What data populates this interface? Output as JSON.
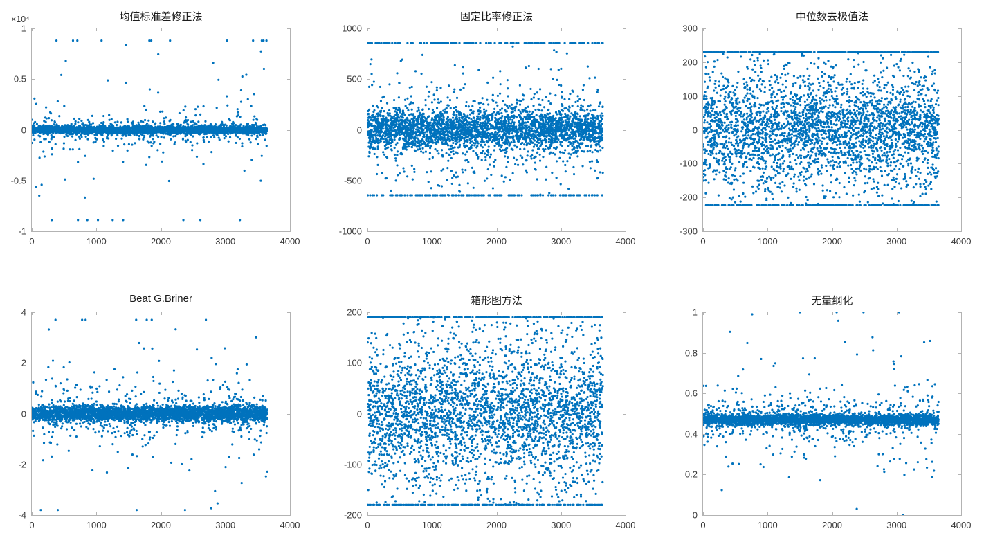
{
  "figure": {
    "background": "#ffffff",
    "axes_border_color": "#b3b3b3",
    "tick_label_color": "#3b3b3b",
    "marker_color": "#0072BD"
  },
  "chart_data": [
    {
      "type": "scatter",
      "title": "均值标准差修正法",
      "y_exponent_label": "×10⁴",
      "xlim": [
        0,
        4000
      ],
      "ylim": [
        -10000,
        10000
      ],
      "xticks": [
        0,
        1000,
        2000,
        3000,
        4000
      ],
      "yticks": [
        -10000,
        -5000,
        0,
        5000,
        10000
      ],
      "ytick_labels": [
        "-1",
        "-0.5",
        "0",
        "0.5",
        "1"
      ],
      "n_points": 3650,
      "x_max_data": 3650,
      "center": 0,
      "band_components": [
        {
          "frac": 0.86,
          "std": 180
        },
        {
          "frac": 0.1,
          "std": 700
        },
        {
          "frac": 0.03,
          "std": 1800
        },
        {
          "frac": 0.01,
          "std": 4200
        }
      ],
      "clip_high": {
        "value": 8800,
        "frac": 0.002
      },
      "clip_low": {
        "value": -8900,
        "frac": 0.002
      },
      "marker_color": "#0072BD",
      "seed": 11
    },
    {
      "type": "scatter",
      "title": "固定比率修正法",
      "y_exponent_label": "",
      "xlim": [
        0,
        4000
      ],
      "ylim": [
        -1000,
        1000
      ],
      "xticks": [
        0,
        1000,
        2000,
        3000,
        4000
      ],
      "yticks": [
        -1000,
        -500,
        0,
        500,
        1000
      ],
      "ytick_labels": [
        "-1000",
        "-500",
        "0",
        "500",
        "1000"
      ],
      "n_points": 3650,
      "x_max_data": 3650,
      "center": 0,
      "band_components": [
        {
          "frac": 0.7,
          "std": 90
        },
        {
          "frac": 0.2,
          "std": 200
        },
        {
          "frac": 0.08,
          "std": 380
        },
        {
          "frac": 0.02,
          "std": 600
        }
      ],
      "clip_high": {
        "value": 855,
        "frac": 0.035
      },
      "clip_low": {
        "value": -645,
        "frac": 0.03
      },
      "marker_color": "#0072BD",
      "seed": 22
    },
    {
      "type": "scatter",
      "title": "中位数去极值法",
      "y_exponent_label": "",
      "xlim": [
        0,
        4000
      ],
      "ylim": [
        -300,
        300
      ],
      "xticks": [
        0,
        1000,
        2000,
        3000,
        4000
      ],
      "yticks": [
        -300,
        -200,
        -100,
        0,
        100,
        200,
        300
      ],
      "ytick_labels": [
        "-300",
        "-200",
        "-100",
        "0",
        "100",
        "200",
        "300"
      ],
      "n_points": 3650,
      "x_max_data": 3650,
      "center": 0,
      "band_components": [
        {
          "frac": 0.4,
          "std": 55
        },
        {
          "frac": 0.35,
          "std": 100
        },
        {
          "frac": 0.25,
          "std": 150
        }
      ],
      "clip_high": {
        "value": 230,
        "frac": 0.06
      },
      "clip_low": {
        "value": -223,
        "frac": 0.05
      },
      "marker_color": "#0072BD",
      "seed": 33
    },
    {
      "type": "scatter",
      "title": "Beat G.Briner",
      "y_exponent_label": "",
      "xlim": [
        0,
        4000
      ],
      "ylim": [
        -4,
        4
      ],
      "xticks": [
        0,
        1000,
        2000,
        3000,
        4000
      ],
      "yticks": [
        -4,
        -2,
        0,
        2,
        4
      ],
      "ytick_labels": [
        "-4",
        "-2",
        "0",
        "2",
        "4"
      ],
      "n_points": 3650,
      "x_max_data": 3650,
      "center": 0,
      "band_components": [
        {
          "frac": 0.85,
          "std": 0.15
        },
        {
          "frac": 0.1,
          "std": 0.55
        },
        {
          "frac": 0.04,
          "std": 1.2
        },
        {
          "frac": 0.01,
          "std": 2.2
        }
      ],
      "clip_high": {
        "value": 3.7,
        "frac": 0.0015
      },
      "clip_low": {
        "value": -3.8,
        "frac": 0.001
      },
      "marker_color": "#0072BD",
      "seed": 44
    },
    {
      "type": "scatter",
      "title": "箱形图方法",
      "y_exponent_label": "",
      "xlim": [
        0,
        4000
      ],
      "ylim": [
        -200,
        200
      ],
      "xticks": [
        0,
        1000,
        2000,
        3000,
        4000
      ],
      "yticks": [
        -200,
        -100,
        0,
        100,
        200
      ],
      "ytick_labels": [
        "-200",
        "-100",
        "0",
        "100",
        "200"
      ],
      "n_points": 3650,
      "x_max_data": 3650,
      "center": 0,
      "band_components": [
        {
          "frac": 0.4,
          "std": 45
        },
        {
          "frac": 0.35,
          "std": 85
        },
        {
          "frac": 0.25,
          "std": 130
        }
      ],
      "clip_high": {
        "value": 190,
        "frac": 0.05
      },
      "clip_low": {
        "value": -180,
        "frac": 0.04
      },
      "marker_color": "#0072BD",
      "seed": 55
    },
    {
      "type": "scatter",
      "title": "无量纲化",
      "y_exponent_label": "",
      "xlim": [
        0,
        4000
      ],
      "ylim": [
        0,
        1
      ],
      "xticks": [
        0,
        1000,
        2000,
        3000,
        4000
      ],
      "yticks": [
        0,
        0.2,
        0.4,
        0.6,
        0.8,
        1
      ],
      "ytick_labels": [
        "0",
        "0.2",
        "0.4",
        "0.6",
        "0.8",
        "1"
      ],
      "n_points": 3650,
      "x_max_data": 3650,
      "center": 0.47,
      "band_components": [
        {
          "frac": 0.82,
          "std": 0.012
        },
        {
          "frac": 0.12,
          "std": 0.05
        },
        {
          "frac": 0.05,
          "std": 0.13
        },
        {
          "frac": 0.01,
          "std": 0.3
        }
      ],
      "clip_high": {
        "value": 1.0,
        "frac": 0.0008
      },
      "clip_low": {
        "value": 0.0,
        "frac": 0.0008
      },
      "marker_color": "#0072BD",
      "seed": 66
    }
  ]
}
